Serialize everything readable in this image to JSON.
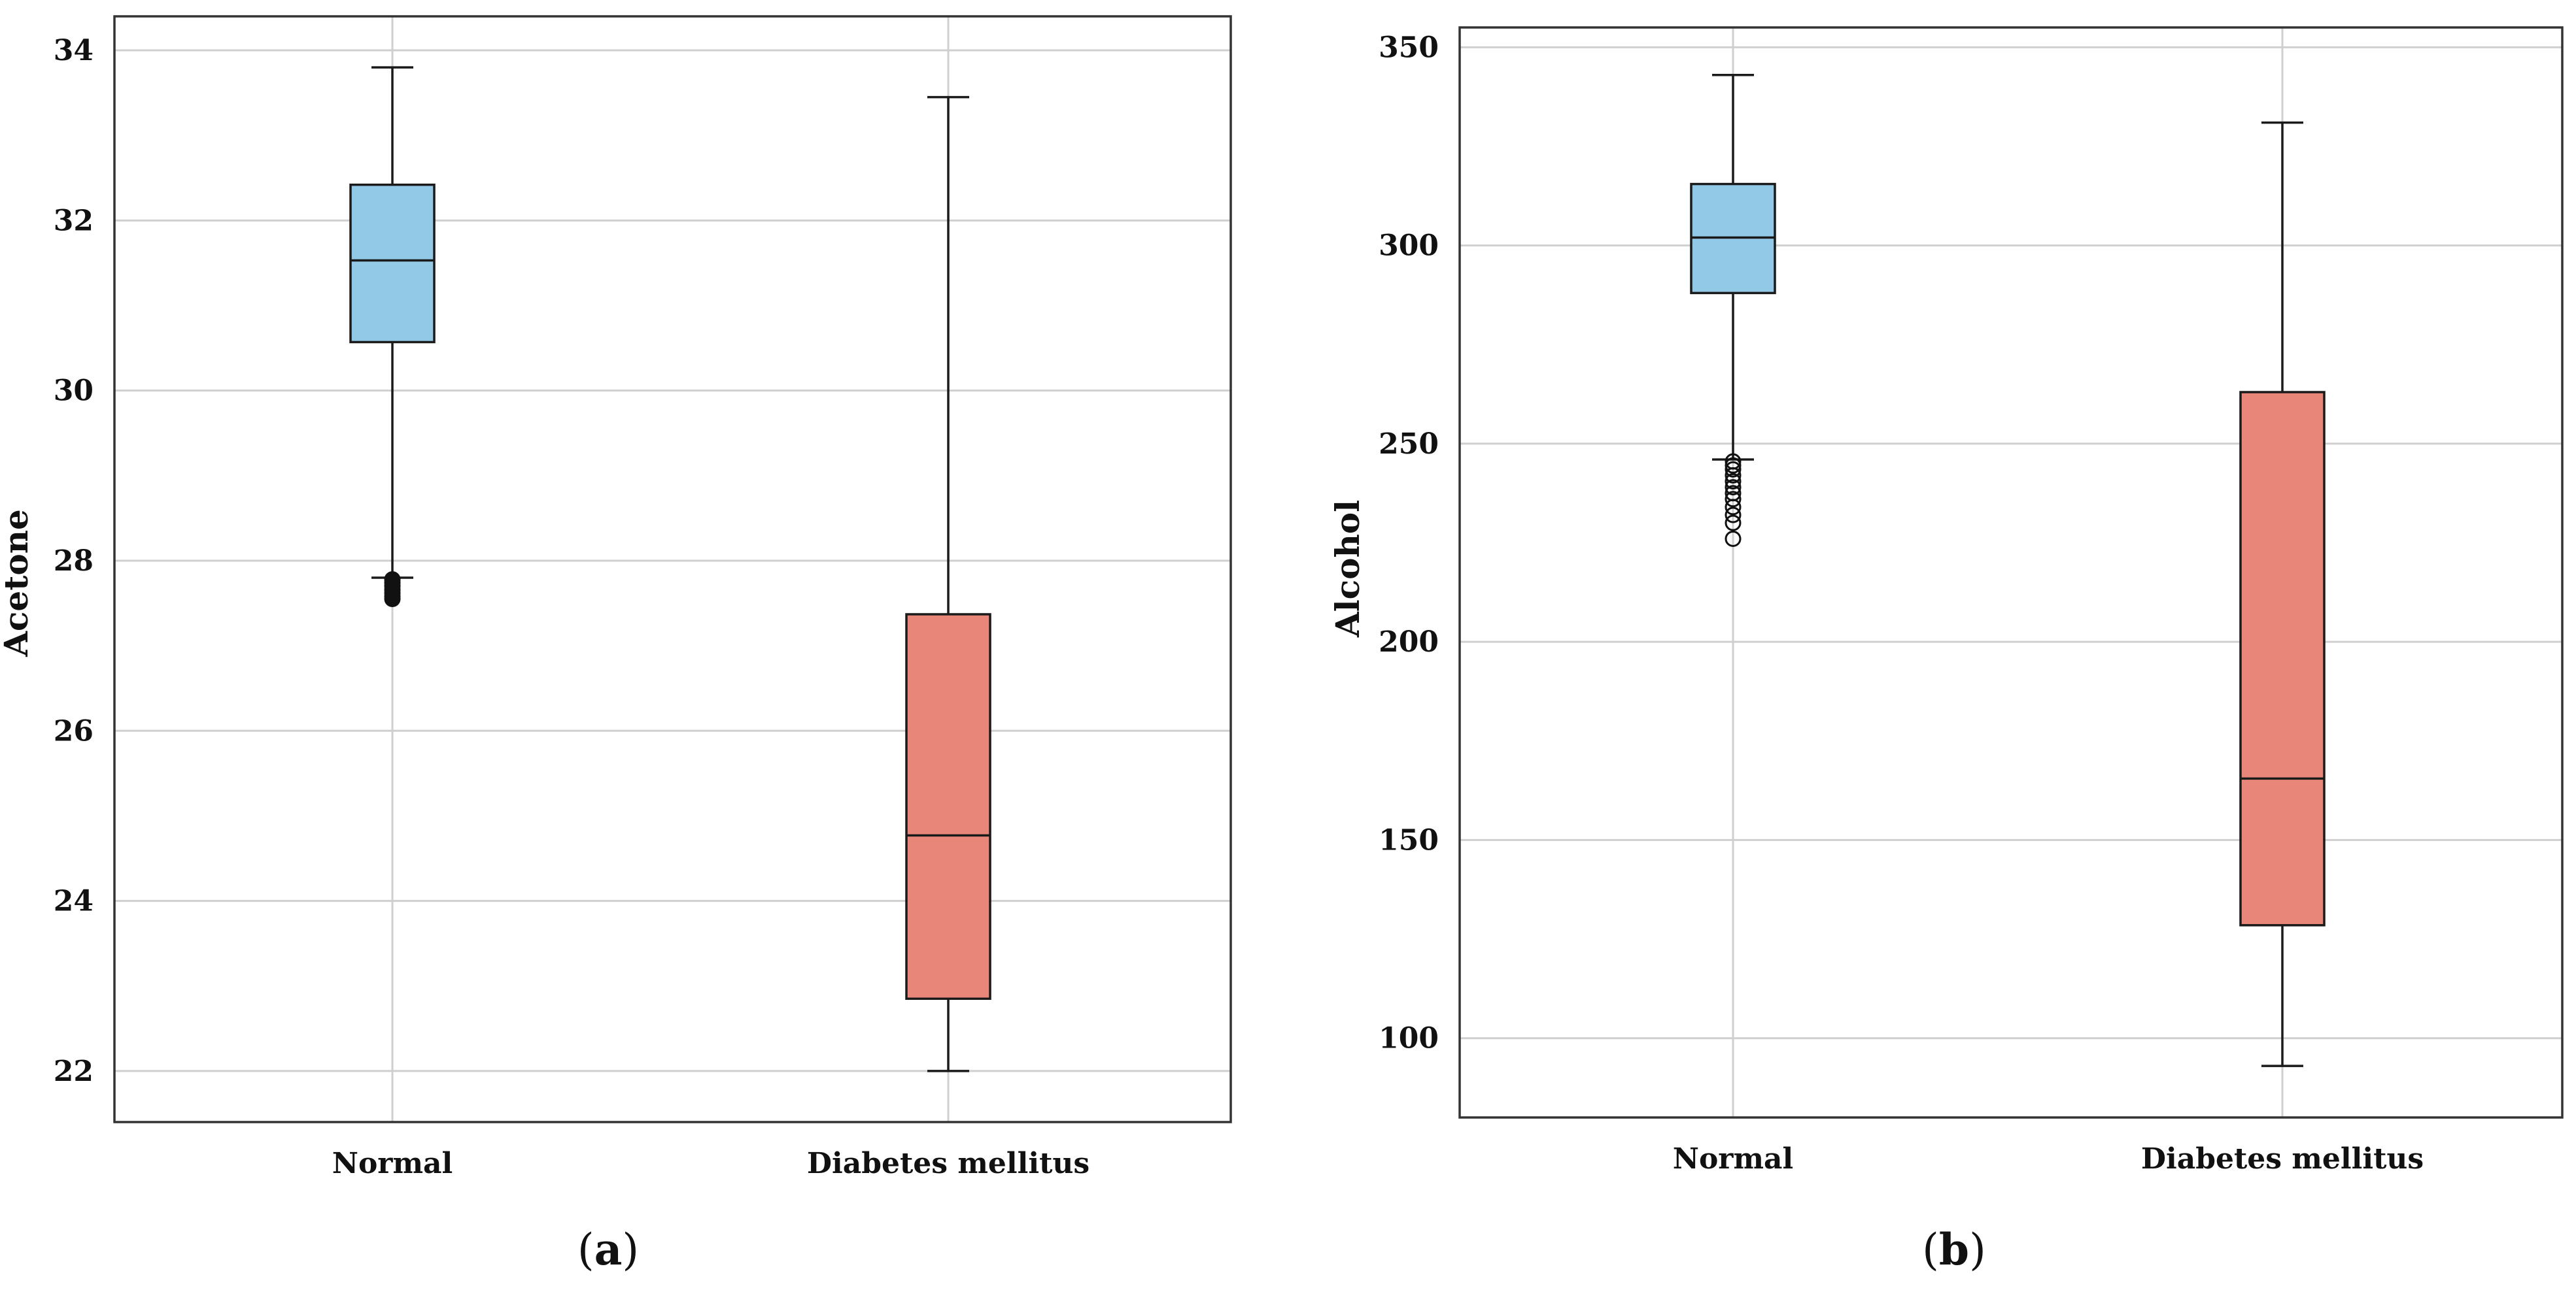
{
  "chart_data": [
    {
      "type": "box",
      "panel_label": "a",
      "title": "",
      "xlabel": "",
      "ylabel": "Acetone",
      "ylim": [
        21.4,
        34.4
      ],
      "y_ticks": [
        22,
        24,
        26,
        28,
        30,
        32,
        34
      ],
      "grid": true,
      "categories": [
        "Normal",
        "Diabetes mellitus"
      ],
      "boxes": [
        {
          "category": "Normal",
          "whisker_low": 27.8,
          "q1": 30.57,
          "median": 31.53,
          "q3": 32.42,
          "whisker_high": 33.8,
          "outliers": [
            27.78,
            27.74,
            27.7,
            27.66,
            27.62,
            27.58,
            27.55
          ],
          "color": "#92c9e7"
        },
        {
          "category": "Diabetes mellitus",
          "whisker_low": 22.0,
          "q1": 22.85,
          "median": 24.77,
          "q3": 27.37,
          "whisker_high": 33.45,
          "outliers": [],
          "color": "#e9867a"
        }
      ]
    },
    {
      "type": "box",
      "panel_label": "b",
      "title": "",
      "xlabel": "",
      "ylabel": "Alcohol",
      "ylim": [
        80,
        355
      ],
      "y_ticks": [
        100,
        150,
        200,
        250,
        300,
        350
      ],
      "grid": true,
      "categories": [
        "Normal",
        "Diabetes mellitus"
      ],
      "boxes": [
        {
          "category": "Normal",
          "whisker_low": 246,
          "q1": 288,
          "median": 302,
          "q3": 315.5,
          "whisker_high": 343,
          "outliers": [
            245.5,
            244.5,
            243.5,
            242,
            240.5,
            239,
            237.5,
            236,
            234,
            232,
            230,
            226
          ],
          "color": "#92c9e7"
        },
        {
          "category": "Diabetes mellitus",
          "whisker_low": 93,
          "q1": 128.5,
          "median": 165.5,
          "q3": 263,
          "whisker_high": 331,
          "outliers": [],
          "color": "#e9867a"
        }
      ]
    }
  ]
}
